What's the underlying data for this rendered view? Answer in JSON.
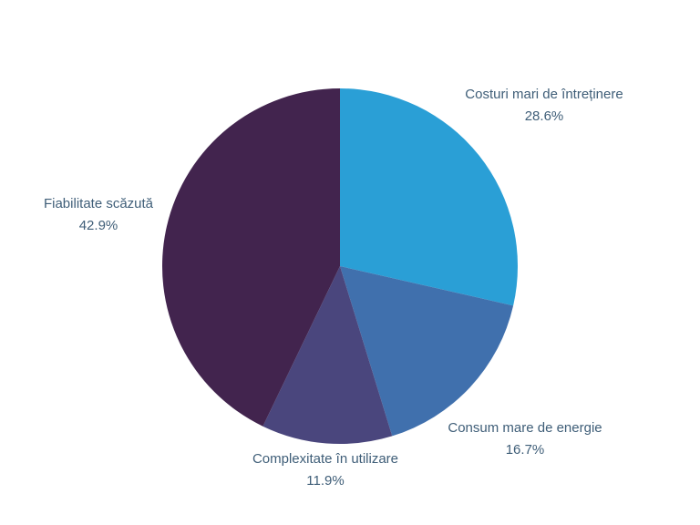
{
  "chart_data": {
    "type": "pie",
    "title": "",
    "slices": [
      {
        "label": "Costuri mari de întreținere",
        "value": 28.6,
        "display": "28.6%",
        "color": "#2a9fd6"
      },
      {
        "label": "Consum mare de energie",
        "value": 16.7,
        "display": "16.7%",
        "color": "#4070ad"
      },
      {
        "label": "Complexitate în utilizare",
        "value": 11.9,
        "display": "11.9%",
        "color": "#4a467d"
      },
      {
        "label": "Fiabilitate scăzută",
        "value": 42.9,
        "display": "42.9%",
        "color": "#42244e"
      }
    ],
    "start": "top",
    "direction": "clockwise",
    "labels_outside": true,
    "legend": "none"
  }
}
